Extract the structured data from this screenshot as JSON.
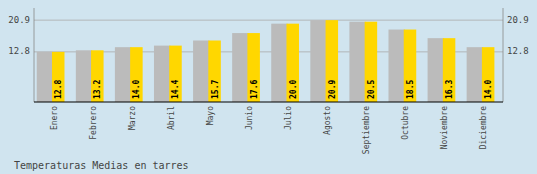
{
  "chart_data": {
    "type": "bar",
    "title": "Temperaturas Medias en tarres",
    "categories": [
      "Enero",
      "Febrero",
      "Marzo",
      "Abril",
      "Mayo",
      "Junio",
      "Julio",
      "Agosto",
      "Septiembre",
      "Octubre",
      "Noviembre",
      "Diciembre"
    ],
    "values": [
      12.8,
      13.2,
      14.0,
      14.4,
      15.7,
      17.6,
      20.0,
      20.9,
      20.5,
      18.5,
      16.3,
      14.0
    ],
    "value_labels": [
      "12.8",
      "13.2",
      "14.0",
      "14.4",
      "15.7",
      "17.6",
      "20.0",
      "20.9",
      "20.5",
      "18.5",
      "16.3",
      "14.0"
    ],
    "color": "#FFD700",
    "ylim": [
      0.0,
      24.0
    ],
    "yticks": [
      12.8,
      20.9
    ],
    "grid": true,
    "data_labels": true
  }
}
